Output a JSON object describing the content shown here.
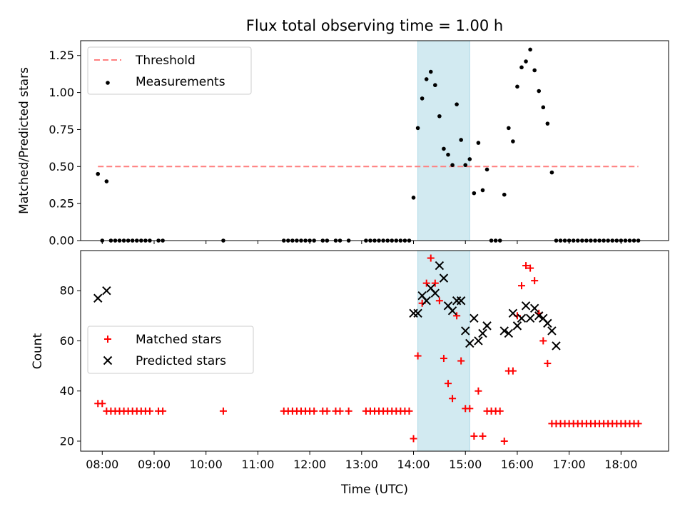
{
  "title": "Flux total observing time = 1.00 h",
  "colors": {
    "threshold": "#ff7f7f",
    "measurements": "#000000",
    "matched": "#ff0000",
    "predicted": "#000000",
    "highlight": "#add8e6"
  },
  "chart_data": [
    {
      "type": "scatter",
      "ylabel": "Matched/Predicted stars",
      "xlim": [
        "07:35",
        "18:55"
      ],
      "ylim": [
        0,
        1.35
      ],
      "yticks": [
        0.0,
        0.25,
        0.5,
        0.75,
        1.0,
        1.25
      ],
      "ytick_labels": [
        "0.00",
        "0.25",
        "0.50",
        "0.75",
        "1.00",
        "1.25"
      ],
      "highlight_span": [
        "14:05",
        "15:05"
      ],
      "legend_position": "upper left",
      "legend": [
        "Threshold",
        "Measurements"
      ],
      "series": [
        {
          "name": "Threshold",
          "kind": "dashed-line",
          "x": [
            "07:55",
            "18:20"
          ],
          "y": [
            0.5,
            0.5
          ]
        },
        {
          "name": "Measurements",
          "kind": "dot",
          "x": [
            "07:55",
            "08:00",
            "08:05",
            "08:10",
            "08:15",
            "08:20",
            "08:25",
            "08:30",
            "08:35",
            "08:40",
            "08:45",
            "08:50",
            "08:55",
            "09:05",
            "09:10",
            "10:20",
            "11:30",
            "11:35",
            "11:40",
            "11:45",
            "11:50",
            "11:55",
            "12:00",
            "12:05",
            "12:15",
            "12:20",
            "12:30",
            "12:35",
            "12:45",
            "13:05",
            "13:10",
            "13:15",
            "13:20",
            "13:25",
            "13:30",
            "13:35",
            "13:40",
            "13:45",
            "13:50",
            "13:55",
            "14:00",
            "14:05",
            "14:10",
            "14:15",
            "14:20",
            "14:25",
            "14:30",
            "14:35",
            "14:40",
            "14:45",
            "14:50",
            "14:55",
            "15:00",
            "15:05",
            "15:10",
            "15:15",
            "15:20",
            "15:25",
            "15:30",
            "15:35",
            "15:40",
            "15:45",
            "15:50",
            "15:55",
            "16:00",
            "16:05",
            "16:10",
            "16:15",
            "16:20",
            "16:25",
            "16:30",
            "16:35",
            "16:40",
            "16:45",
            "16:50",
            "16:55",
            "17:00",
            "17:05",
            "17:10",
            "17:15",
            "17:20",
            "17:25",
            "17:30",
            "17:35",
            "17:40",
            "17:45",
            "17:50",
            "17:55",
            "18:00",
            "18:05",
            "18:10",
            "18:15",
            "18:20"
          ],
          "y": [
            0.45,
            0.0,
            0.4,
            0.0,
            0.0,
            0.0,
            0.0,
            0.0,
            0.0,
            0.0,
            0.0,
            0.0,
            0.0,
            0.0,
            0.0,
            0.0,
            0.0,
            0.0,
            0.0,
            0.0,
            0.0,
            0.0,
            0.0,
            0.0,
            0.0,
            0.0,
            0.0,
            0.0,
            0.0,
            0.0,
            0.0,
            0.0,
            0.0,
            0.0,
            0.0,
            0.0,
            0.0,
            0.0,
            0.0,
            0.0,
            0.29,
            0.76,
            0.96,
            1.09,
            1.14,
            1.05,
            0.84,
            0.62,
            0.58,
            0.51,
            0.92,
            0.68,
            0.51,
            0.55,
            0.32,
            0.66,
            0.34,
            0.48,
            0.0,
            0.0,
            0.0,
            0.31,
            0.76,
            0.67,
            1.04,
            1.17,
            1.21,
            1.29,
            1.15,
            1.01,
            0.9,
            0.79,
            0.46,
            0.0,
            0.0,
            0.0,
            0.0,
            0.0,
            0.0,
            0.0,
            0.0,
            0.0,
            0.0,
            0.0,
            0.0,
            0.0,
            0.0,
            0.0,
            0.0,
            0.0,
            0.0,
            0.0,
            0.0
          ]
        }
      ]
    },
    {
      "type": "scatter",
      "ylabel": "Count",
      "xlabel": "Time (UTC)",
      "xlim": [
        "07:35",
        "18:55"
      ],
      "ylim": [
        16,
        96
      ],
      "yticks": [
        20,
        40,
        60,
        80
      ],
      "ytick_labels": [
        "20",
        "40",
        "60",
        "80"
      ],
      "xticks": [
        "08:00",
        "09:00",
        "10:00",
        "11:00",
        "12:00",
        "13:00",
        "14:00",
        "15:00",
        "16:00",
        "17:00",
        "18:00"
      ],
      "highlight_span": [
        "14:05",
        "15:05"
      ],
      "legend_position": "center left",
      "legend": [
        "Matched stars",
        "Predicted stars"
      ],
      "series": [
        {
          "name": "Matched stars",
          "kind": "plus",
          "x": [
            "07:55",
            "08:00",
            "08:05",
            "08:10",
            "08:15",
            "08:20",
            "08:25",
            "08:30",
            "08:35",
            "08:40",
            "08:45",
            "08:50",
            "08:55",
            "09:05",
            "09:10",
            "10:20",
            "11:30",
            "11:35",
            "11:40",
            "11:45",
            "11:50",
            "11:55",
            "12:00",
            "12:05",
            "12:15",
            "12:20",
            "12:30",
            "12:35",
            "12:45",
            "13:05",
            "13:10",
            "13:15",
            "13:20",
            "13:25",
            "13:30",
            "13:35",
            "13:40",
            "13:45",
            "13:50",
            "13:55",
            "14:00",
            "14:05",
            "14:10",
            "14:15",
            "14:20",
            "14:25",
            "14:30",
            "14:35",
            "14:40",
            "14:45",
            "14:50",
            "14:55",
            "15:00",
            "15:05",
            "15:10",
            "15:15",
            "15:20",
            "15:25",
            "15:30",
            "15:35",
            "15:40",
            "15:45",
            "15:50",
            "15:55",
            "16:00",
            "16:05",
            "16:10",
            "16:15",
            "16:20",
            "16:25",
            "16:30",
            "16:35",
            "16:40",
            "16:45",
            "16:50",
            "16:55",
            "17:00",
            "17:05",
            "17:10",
            "17:15",
            "17:20",
            "17:25",
            "17:30",
            "17:35",
            "17:40",
            "17:45",
            "17:50",
            "17:55",
            "18:00",
            "18:05",
            "18:10",
            "18:15",
            "18:20"
          ],
          "y": [
            35,
            35,
            32,
            32,
            32,
            32,
            32,
            32,
            32,
            32,
            32,
            32,
            32,
            32,
            32,
            32,
            32,
            32,
            32,
            32,
            32,
            32,
            32,
            32,
            32,
            32,
            32,
            32,
            32,
            32,
            32,
            32,
            32,
            32,
            32,
            32,
            32,
            32,
            32,
            32,
            21,
            54,
            75,
            83,
            93,
            83,
            76,
            53,
            43,
            37,
            70,
            52,
            33,
            33,
            22,
            40,
            22,
            32,
            32,
            32,
            32,
            20,
            48,
            48,
            70,
            82,
            90,
            89,
            84,
            71,
            60,
            51,
            27,
            27,
            27,
            27,
            27,
            27,
            27,
            27,
            27,
            27,
            27,
            27,
            27,
            27,
            27,
            27,
            27,
            27,
            27,
            27,
            27
          ]
        },
        {
          "name": "Predicted stars",
          "kind": "x",
          "x": [
            "07:55",
            "08:05",
            "14:00",
            "14:05",
            "14:10",
            "14:15",
            "14:20",
            "14:25",
            "14:30",
            "14:35",
            "14:40",
            "14:45",
            "14:50",
            "14:55",
            "15:00",
            "15:05",
            "15:10",
            "15:15",
            "15:20",
            "15:25",
            "15:45",
            "15:50",
            "15:55",
            "16:00",
            "16:05",
            "16:10",
            "16:15",
            "16:20",
            "16:25",
            "16:30",
            "16:35",
            "16:40",
            "16:45"
          ],
          "y": [
            77,
            80,
            71,
            71,
            78,
            76,
            81,
            79,
            90,
            85,
            74,
            72,
            76,
            76,
            64,
            59,
            69,
            60,
            63,
            66,
            64,
            63,
            71,
            66,
            69,
            74,
            69,
            73,
            70,
            69,
            67,
            64,
            58
          ]
        }
      ]
    }
  ]
}
